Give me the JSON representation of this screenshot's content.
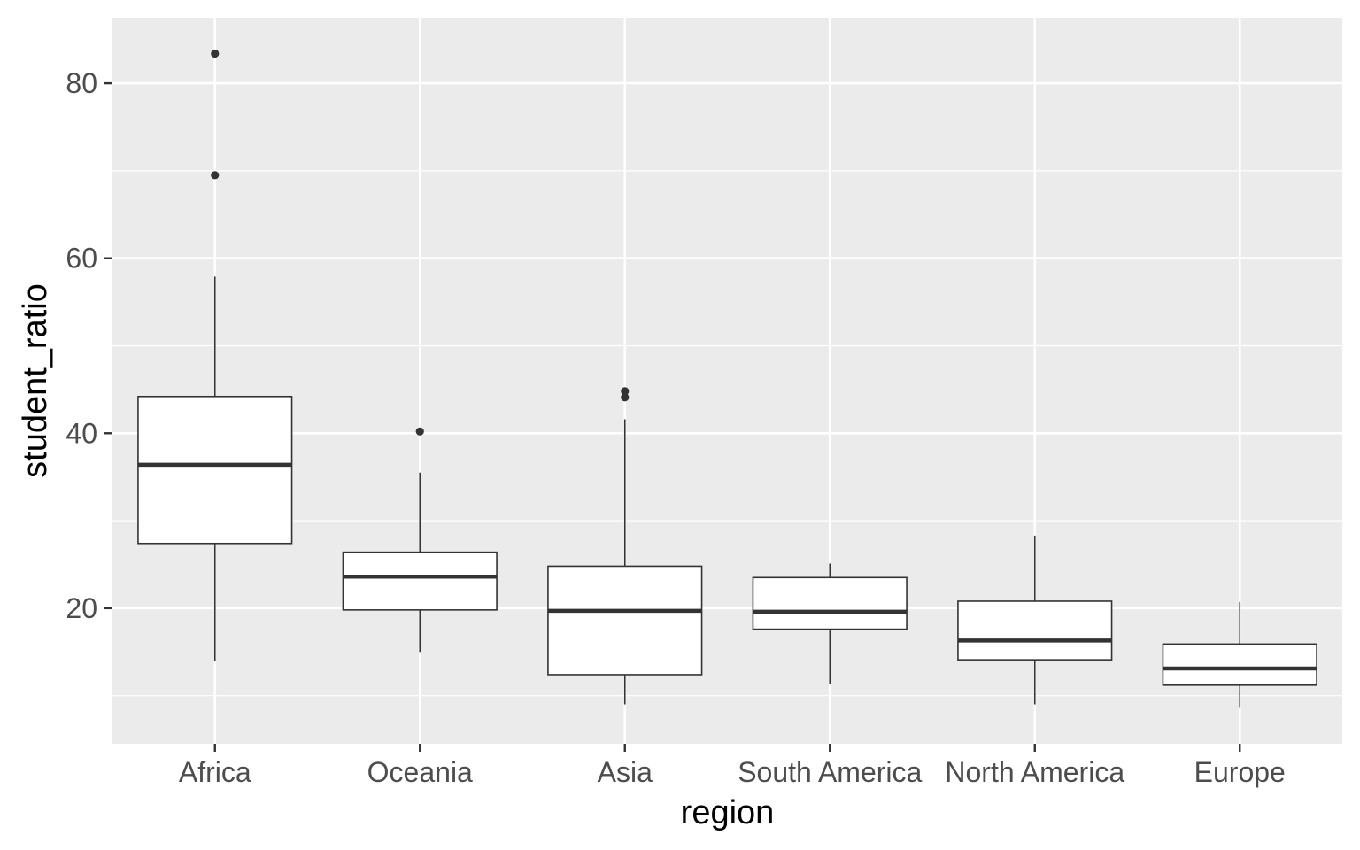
{
  "chart_data": {
    "type": "box",
    "xlabel": "region",
    "ylabel": "student_ratio",
    "ylim": [
      4.5,
      87.5
    ],
    "yticks": [
      20,
      40,
      60,
      80
    ],
    "yminor": [
      10,
      30,
      50,
      70
    ],
    "grid": true,
    "colors": {
      "panel": "#ebebeb",
      "grid": "#ffffff",
      "box_fill": "#ffffff",
      "stroke": "#333333"
    },
    "categories": [
      "Africa",
      "Oceania",
      "Asia",
      "South America",
      "North America",
      "Europe"
    ],
    "boxes": [
      {
        "category": "Africa",
        "min": 14.0,
        "q1": 27.4,
        "median": 36.4,
        "q3": 44.2,
        "max": 57.9,
        "outliers": [
          69.5,
          83.4
        ]
      },
      {
        "category": "Oceania",
        "min": 15.0,
        "q1": 19.8,
        "median": 23.6,
        "q3": 26.4,
        "max": 35.5,
        "outliers": [
          40.2
        ]
      },
      {
        "category": "Asia",
        "min": 9.0,
        "q1": 12.4,
        "median": 19.7,
        "q3": 24.8,
        "max": 41.6,
        "outliers": [
          44.1,
          44.8
        ]
      },
      {
        "category": "South America",
        "min": 11.3,
        "q1": 17.6,
        "median": 19.6,
        "q3": 23.5,
        "max": 25.1,
        "outliers": []
      },
      {
        "category": "North America",
        "min": 9.0,
        "q1": 14.1,
        "median": 16.3,
        "q3": 20.8,
        "max": 28.3,
        "outliers": []
      },
      {
        "category": "Europe",
        "min": 8.6,
        "q1": 11.2,
        "median": 13.1,
        "q3": 15.9,
        "max": 20.7,
        "outliers": []
      }
    ]
  }
}
